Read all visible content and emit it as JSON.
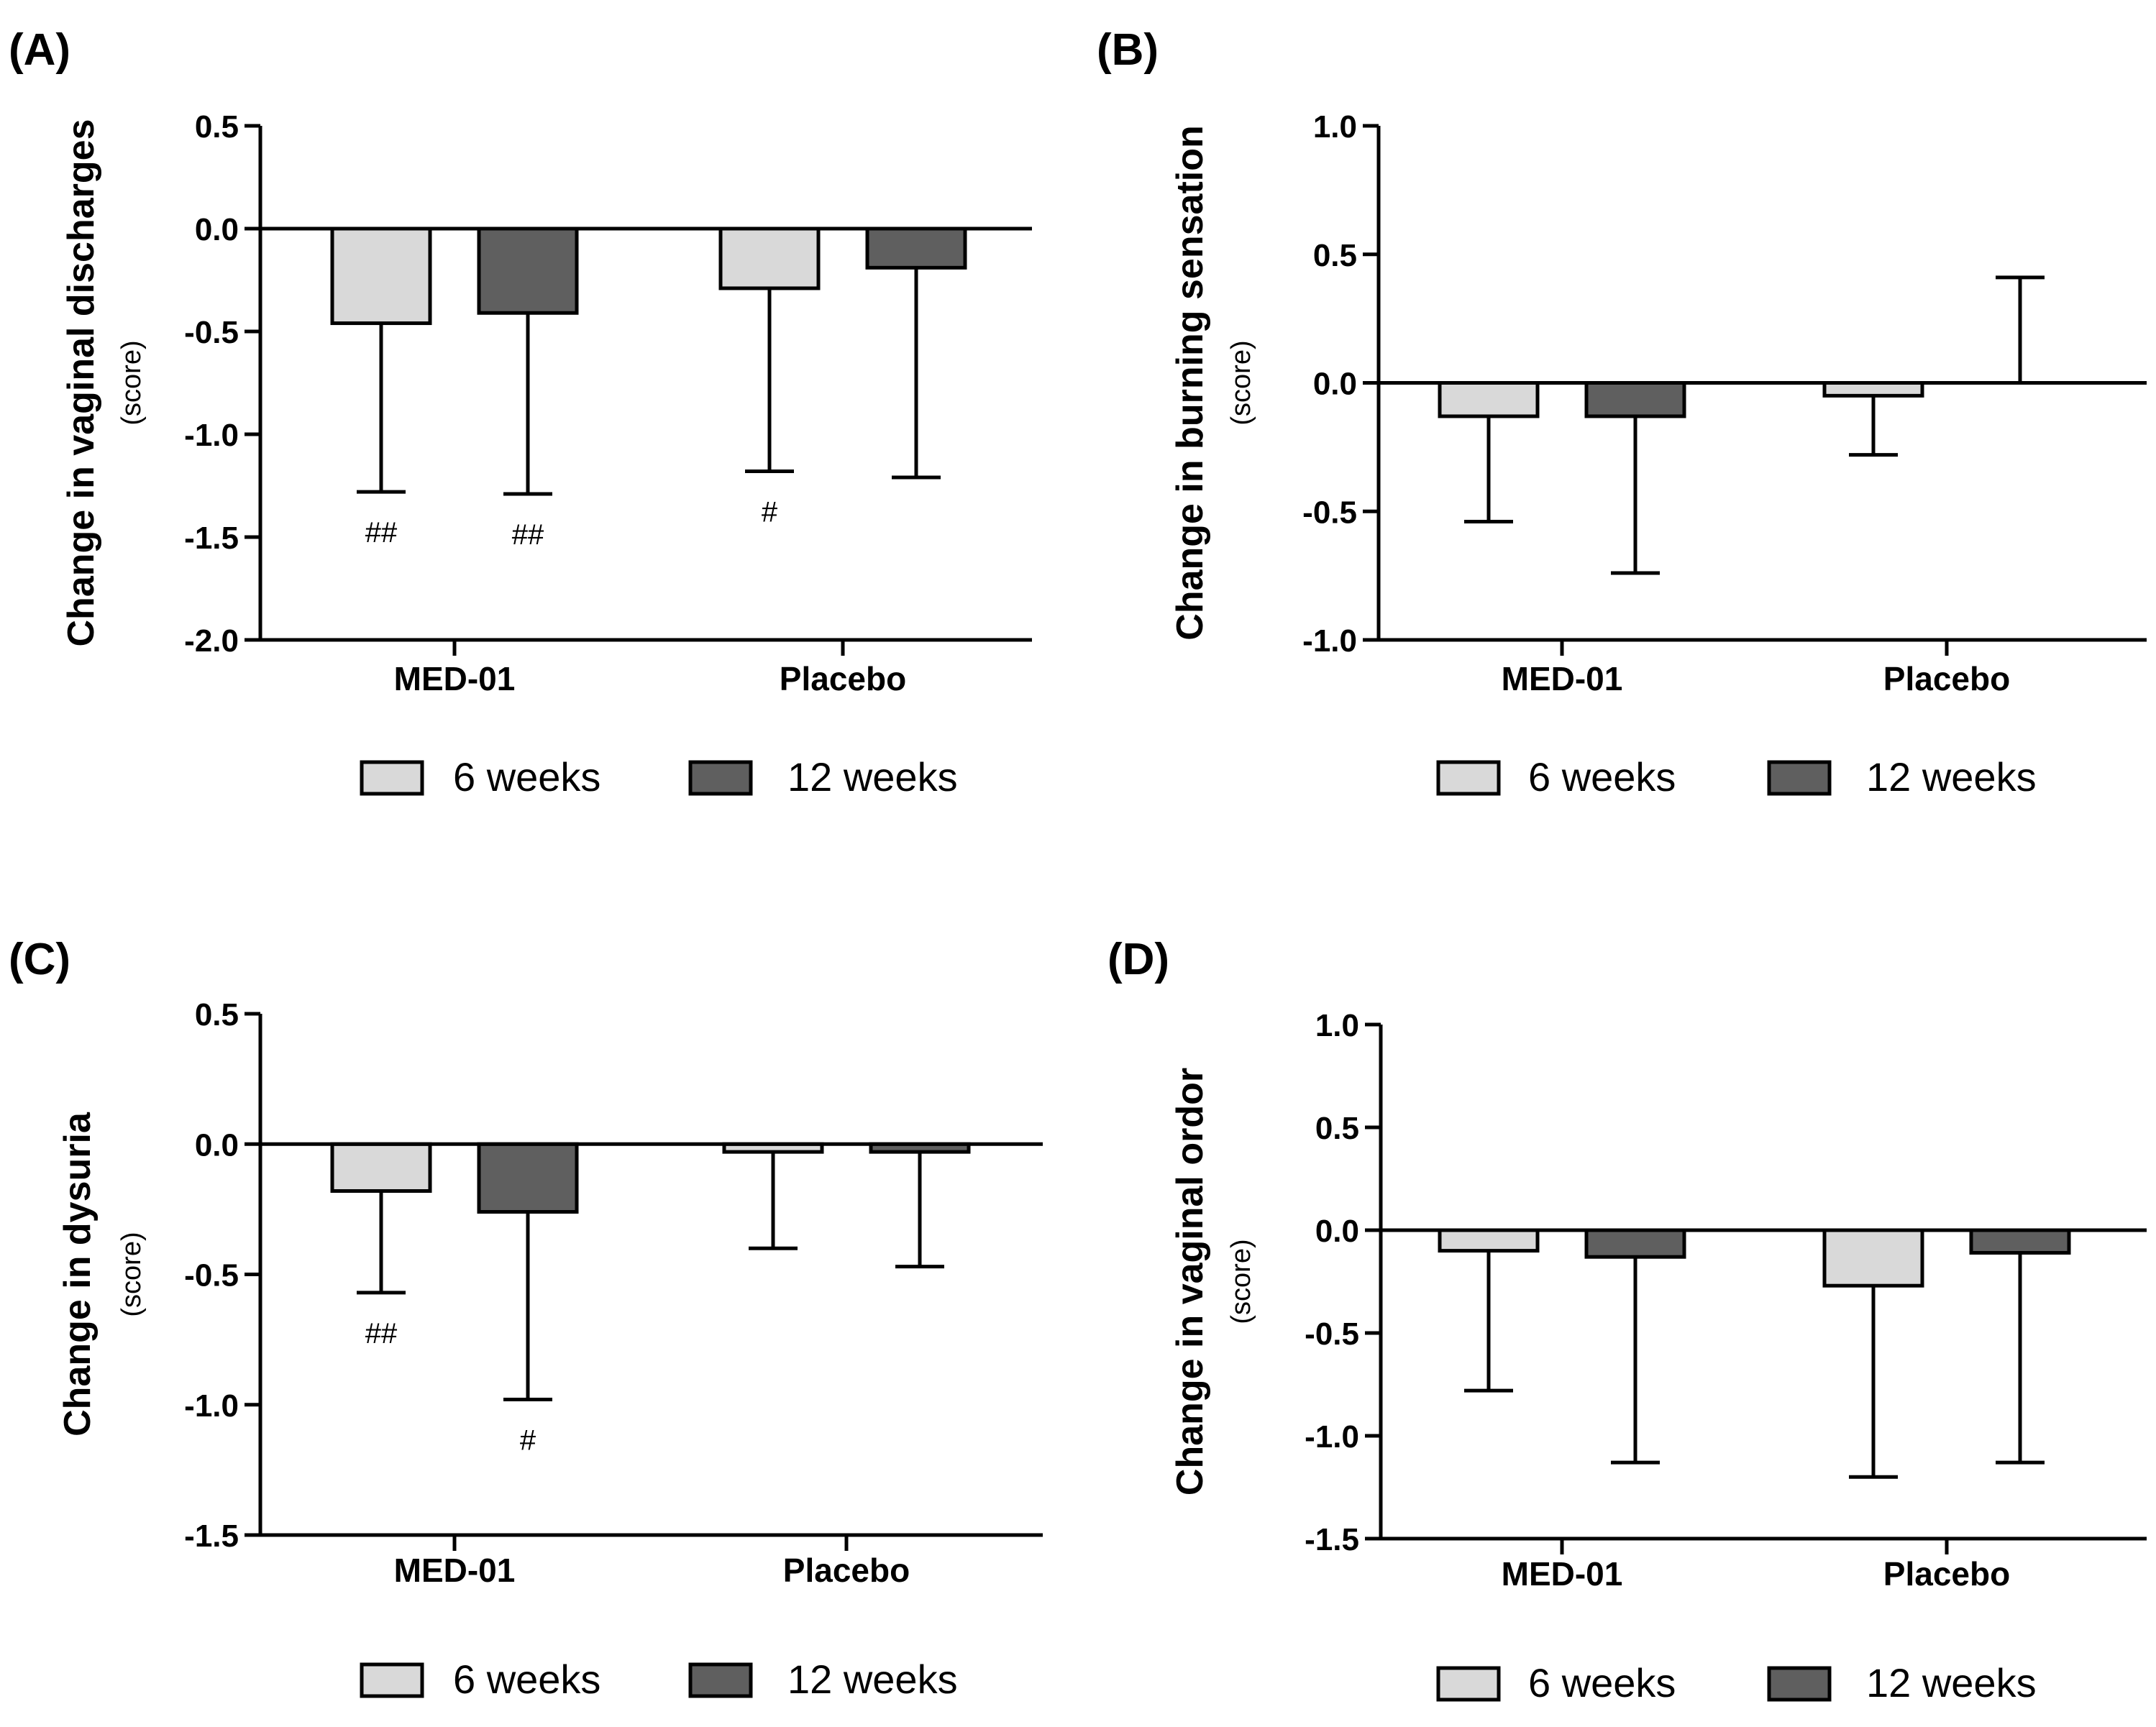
{
  "colors": {
    "six_weeks": "#d9d9d9",
    "twelve_weeks": "#5f5f5f",
    "axis": "#000000"
  },
  "chart_data": [
    {
      "panel_label": "(A)",
      "type": "bar",
      "ylabel": "Change in vaginal discharges",
      "ylabel_unit": "(score)",
      "ylim": [
        -2.0,
        0.5
      ],
      "yticks": [
        0.5,
        0.0,
        -0.5,
        -1.0,
        -1.5,
        -2.0
      ],
      "ytick_labels": [
        "0.5",
        "0.0",
        "-0.5",
        "-1.0",
        "-1.5",
        "-2.0"
      ],
      "categories": [
        "MED-01",
        "Placebo"
      ],
      "series": [
        {
          "name": "6 weeks",
          "values": [
            -0.46,
            -0.29
          ],
          "error_ends": [
            -1.28,
            -1.18
          ],
          "annotations": [
            "##",
            "#"
          ]
        },
        {
          "name": "12 weeks",
          "values": [
            -0.41,
            -0.19
          ],
          "error_ends": [
            -1.29,
            -1.21
          ],
          "annotations": [
            "##",
            ""
          ]
        }
      ],
      "legend": [
        "6 weeks",
        "12 weeks"
      ]
    },
    {
      "panel_label": "(B)",
      "type": "bar",
      "ylabel": "Change in burning sensation",
      "ylabel_unit": "(score)",
      "ylim": [
        -1.0,
        1.0
      ],
      "yticks": [
        1.0,
        0.5,
        0.0,
        -0.5,
        -1.0
      ],
      "ytick_labels": [
        "1.0",
        "0.5",
        "0.0",
        "-0.5",
        "-1.0"
      ],
      "categories": [
        "MED-01",
        "Placebo"
      ],
      "series": [
        {
          "name": "6 weeks",
          "values": [
            -0.13,
            -0.05
          ],
          "error_ends": [
            -0.54,
            -0.28
          ],
          "annotations": [
            "",
            ""
          ]
        },
        {
          "name": "12 weeks",
          "values": [
            -0.13,
            0.0
          ],
          "error_ends": [
            -0.74,
            0.41
          ],
          "annotations": [
            "",
            ""
          ]
        }
      ],
      "legend": [
        "6 weeks",
        "12 weeks"
      ]
    },
    {
      "panel_label": "(C)",
      "type": "bar",
      "ylabel": "Change in dysuria",
      "ylabel_unit": "(score)",
      "ylim": [
        -1.5,
        0.5
      ],
      "yticks": [
        0.5,
        0.0,
        -0.5,
        -1.0,
        -1.5
      ],
      "ytick_labels": [
        "0.5",
        "0.0",
        "-0.5",
        "-1.0",
        "-1.5"
      ],
      "categories": [
        "MED-01",
        "Placebo"
      ],
      "series": [
        {
          "name": "6 weeks",
          "values": [
            -0.18,
            -0.03
          ],
          "error_ends": [
            -0.57,
            -0.4
          ],
          "annotations": [
            "##",
            ""
          ]
        },
        {
          "name": "12 weeks",
          "values": [
            -0.26,
            -0.03
          ],
          "error_ends": [
            -0.98,
            -0.47
          ],
          "annotations": [
            "#",
            ""
          ]
        }
      ],
      "legend": [
        "6 weeks",
        "12 weeks"
      ]
    },
    {
      "panel_label": "(D)",
      "type": "bar",
      "ylabel": "Change in vaginal ordor",
      "ylabel_unit": "(score)",
      "ylim": [
        -1.5,
        1.0
      ],
      "yticks": [
        1.0,
        0.5,
        0.0,
        -0.5,
        -1.0,
        -1.5
      ],
      "ytick_labels": [
        "1.0",
        "0.5",
        "0.0",
        "-0.5",
        "-1.0",
        "-1.5"
      ],
      "categories": [
        "MED-01",
        "Placebo"
      ],
      "series": [
        {
          "name": "6 weeks",
          "values": [
            -0.1,
            -0.27
          ],
          "error_ends": [
            -0.78,
            -1.2
          ],
          "annotations": [
            "",
            ""
          ]
        },
        {
          "name": "12 weeks",
          "values": [
            -0.13,
            -0.11
          ],
          "error_ends": [
            -1.13,
            -1.13
          ],
          "annotations": [
            "",
            ""
          ]
        }
      ],
      "legend": [
        "6 weeks",
        "12 weeks"
      ]
    }
  ]
}
